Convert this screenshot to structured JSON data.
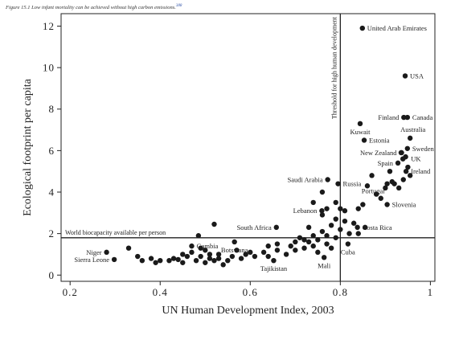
{
  "caption": {
    "prefix": "Figure 15.1",
    "text": "Low infant mortality can be achieved without high carbon emissions.",
    "ref": "388"
  },
  "chart_data": {
    "type": "scatter",
    "title": "",
    "xlabel": "UN Human Development Index, 2003",
    "ylabel": "Ecological footprint per capita",
    "xlim": [
      0.18,
      1.01
    ],
    "ylim": [
      -0.3,
      12.6
    ],
    "xticks": [
      {
        "v": 0.2,
        "label": "0.2"
      },
      {
        "v": 0.4,
        "label": "0.4"
      },
      {
        "v": 0.6,
        "label": "0.6"
      },
      {
        "v": 0.8,
        "label": "0.8"
      },
      {
        "v": 1.0,
        "label": "1"
      }
    ],
    "yticks": [
      {
        "v": 0,
        "label": "0"
      },
      {
        "v": 2,
        "label": "2"
      },
      {
        "v": 4,
        "label": "4"
      },
      {
        "v": 6,
        "label": "6"
      },
      {
        "v": 8,
        "label": "8"
      },
      {
        "v": 10,
        "label": "10"
      },
      {
        "v": 12,
        "label": "12"
      }
    ],
    "grid": false,
    "reference_lines": {
      "horizontal": {
        "y": 1.8,
        "label": "World biocapacity available per person"
      },
      "vertical": {
        "x": 0.8,
        "label": "Threshold for high human development"
      }
    },
    "labeled_points": [
      {
        "name": "United Arab Emirates",
        "x": 0.849,
        "y": 11.9
      },
      {
        "name": "USA",
        "x": 0.944,
        "y": 9.6
      },
      {
        "name": "Finland",
        "x": 0.941,
        "y": 7.6
      },
      {
        "name": "Canada",
        "x": 0.949,
        "y": 7.6
      },
      {
        "name": "Kuwait",
        "x": 0.844,
        "y": 7.3
      },
      {
        "name": "Australia",
        "x": 0.955,
        "y": 6.6
      },
      {
        "name": "Estonia",
        "x": 0.853,
        "y": 6.5
      },
      {
        "name": "Sweden",
        "x": 0.949,
        "y": 6.1
      },
      {
        "name": "New Zealand",
        "x": 0.936,
        "y": 5.9
      },
      {
        "name": "UK",
        "x": 0.939,
        "y": 5.6
      },
      {
        "name": "Spain",
        "x": 0.928,
        "y": 5.4
      },
      {
        "name": "Ireland",
        "x": 0.946,
        "y": 5.0
      },
      {
        "name": "Saudi Arabia",
        "x": 0.772,
        "y": 4.6
      },
      {
        "name": "Russia",
        "x": 0.795,
        "y": 4.4
      },
      {
        "name": "Portugal",
        "x": 0.904,
        "y": 4.4
      },
      {
        "name": "Lebanon",
        "x": 0.759,
        "y": 3.1
      },
      {
        "name": "Slovenia",
        "x": 0.904,
        "y": 3.4
      },
      {
        "name": "South Africa",
        "x": 0.658,
        "y": 2.3
      },
      {
        "name": "Costa Rica",
        "x": 0.838,
        "y": 2.3
      },
      {
        "name": "Gambia",
        "x": 0.47,
        "y": 1.4
      },
      {
        "name": "Botswana",
        "x": 0.565,
        "y": 1.6
      },
      {
        "name": "Niger",
        "x": 0.281,
        "y": 1.1
      },
      {
        "name": "Sierra Leone",
        "x": 0.298,
        "y": 0.75
      },
      {
        "name": "Cuba",
        "x": 0.817,
        "y": 1.5
      },
      {
        "name": "Tajikistan",
        "x": 0.652,
        "y": 0.7
      },
      {
        "name": "Mali",
        "x": 0.764,
        "y": 0.85
      }
    ],
    "other_points": [
      {
        "x": 0.33,
        "y": 1.3
      },
      {
        "x": 0.35,
        "y": 0.9
      },
      {
        "x": 0.36,
        "y": 0.7
      },
      {
        "x": 0.38,
        "y": 0.8
      },
      {
        "x": 0.39,
        "y": 0.6
      },
      {
        "x": 0.4,
        "y": 0.7
      },
      {
        "x": 0.42,
        "y": 0.7
      },
      {
        "x": 0.43,
        "y": 0.8
      },
      {
        "x": 0.44,
        "y": 0.75
      },
      {
        "x": 0.45,
        "y": 1.0
      },
      {
        "x": 0.45,
        "y": 0.6
      },
      {
        "x": 0.46,
        "y": 0.9
      },
      {
        "x": 0.47,
        "y": 1.1
      },
      {
        "x": 0.48,
        "y": 0.7
      },
      {
        "x": 0.485,
        "y": 1.9
      },
      {
        "x": 0.49,
        "y": 1.3
      },
      {
        "x": 0.49,
        "y": 0.9
      },
      {
        "x": 0.5,
        "y": 0.6
      },
      {
        "x": 0.5,
        "y": 1.2
      },
      {
        "x": 0.51,
        "y": 0.8
      },
      {
        "x": 0.51,
        "y": 1.0
      },
      {
        "x": 0.52,
        "y": 0.7
      },
      {
        "x": 0.52,
        "y": 2.45
      },
      {
        "x": 0.53,
        "y": 1.0
      },
      {
        "x": 0.53,
        "y": 0.8
      },
      {
        "x": 0.54,
        "y": 0.5
      },
      {
        "x": 0.55,
        "y": 0.7
      },
      {
        "x": 0.56,
        "y": 0.9
      },
      {
        "x": 0.57,
        "y": 1.2
      },
      {
        "x": 0.58,
        "y": 0.8
      },
      {
        "x": 0.59,
        "y": 1.0
      },
      {
        "x": 0.6,
        "y": 1.1
      },
      {
        "x": 0.61,
        "y": 0.9
      },
      {
        "x": 0.63,
        "y": 1.1
      },
      {
        "x": 0.64,
        "y": 1.4
      },
      {
        "x": 0.64,
        "y": 0.9
      },
      {
        "x": 0.66,
        "y": 1.5
      },
      {
        "x": 0.66,
        "y": 1.2
      },
      {
        "x": 0.68,
        "y": 1.0
      },
      {
        "x": 0.69,
        "y": 1.4
      },
      {
        "x": 0.7,
        "y": 1.6
      },
      {
        "x": 0.7,
        "y": 1.2
      },
      {
        "x": 0.71,
        "y": 1.8
      },
      {
        "x": 0.72,
        "y": 1.7
      },
      {
        "x": 0.72,
        "y": 1.3
      },
      {
        "x": 0.73,
        "y": 2.3
      },
      {
        "x": 0.73,
        "y": 1.6
      },
      {
        "x": 0.74,
        "y": 1.9
      },
      {
        "x": 0.74,
        "y": 1.4
      },
      {
        "x": 0.74,
        "y": 3.5
      },
      {
        "x": 0.75,
        "y": 1.1
      },
      {
        "x": 0.75,
        "y": 1.7
      },
      {
        "x": 0.76,
        "y": 2.9
      },
      {
        "x": 0.76,
        "y": 2.1
      },
      {
        "x": 0.76,
        "y": 4.0
      },
      {
        "x": 0.77,
        "y": 1.5
      },
      {
        "x": 0.77,
        "y": 1.9
      },
      {
        "x": 0.77,
        "y": 3.2
      },
      {
        "x": 0.78,
        "y": 2.4
      },
      {
        "x": 0.78,
        "y": 1.3
      },
      {
        "x": 0.79,
        "y": 1.8
      },
      {
        "x": 0.79,
        "y": 2.7
      },
      {
        "x": 0.79,
        "y": 3.5
      },
      {
        "x": 0.8,
        "y": 2.2
      },
      {
        "x": 0.8,
        "y": 3.2
      },
      {
        "x": 0.81,
        "y": 2.6
      },
      {
        "x": 0.81,
        "y": 3.1
      },
      {
        "x": 0.82,
        "y": 2.0
      },
      {
        "x": 0.83,
        "y": 2.5
      },
      {
        "x": 0.84,
        "y": 3.2
      },
      {
        "x": 0.84,
        "y": 2.0
      },
      {
        "x": 0.85,
        "y": 3.4
      },
      {
        "x": 0.855,
        "y": 2.3
      },
      {
        "x": 0.86,
        "y": 4.3
      },
      {
        "x": 0.87,
        "y": 4.8
      },
      {
        "x": 0.88,
        "y": 3.9
      },
      {
        "x": 0.89,
        "y": 3.7
      },
      {
        "x": 0.9,
        "y": 4.2
      },
      {
        "x": 0.91,
        "y": 5.0
      },
      {
        "x": 0.915,
        "y": 4.5
      },
      {
        "x": 0.92,
        "y": 4.4
      },
      {
        "x": 0.93,
        "y": 4.2
      },
      {
        "x": 0.935,
        "y": 5.9
      },
      {
        "x": 0.94,
        "y": 4.6
      },
      {
        "x": 0.945,
        "y": 5.7
      },
      {
        "x": 0.95,
        "y": 5.2
      },
      {
        "x": 0.955,
        "y": 4.8
      }
    ]
  }
}
